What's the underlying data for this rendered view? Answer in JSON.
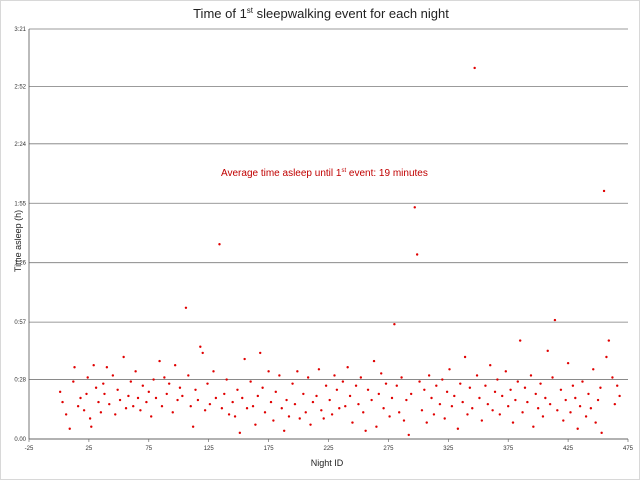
{
  "chart_data": {
    "type": "scatter",
    "title": {
      "pre": "Time of 1",
      "sup": "st",
      "post": " sleepwalking event for each night"
    },
    "xlabel": "Night ID",
    "ylabel": "Time asleep (h)",
    "xlim": [
      -25,
      475
    ],
    "ylim": [
      0,
      200
    ],
    "xticks": [
      -25,
      25,
      75,
      125,
      175,
      225,
      275,
      325,
      375,
      425,
      475
    ],
    "yticks": [
      {
        "v": 0,
        "label": "0.00"
      },
      {
        "v": 29,
        "label": "0:28"
      },
      {
        "v": 57,
        "label": "0:57"
      },
      {
        "v": 86,
        "label": "1:26"
      },
      {
        "v": 115,
        "label": "1:55"
      },
      {
        "v": 144,
        "label": "2:24"
      },
      {
        "v": 172,
        "label": "2:52"
      },
      {
        "v": 200,
        "label": "3:21"
      }
    ],
    "grid": true,
    "point_color": "#e00000",
    "annotation": {
      "pre": "Average time asleep until 1",
      "sup": "st",
      "post": " event: 19 minutes"
    },
    "series": [
      {
        "values": [
          [
            1,
            23
          ],
          [
            3,
            18
          ],
          [
            6,
            12
          ],
          [
            9,
            5
          ],
          [
            12,
            28
          ],
          [
            13,
            35
          ],
          [
            16,
            16
          ],
          [
            18,
            20
          ],
          [
            21,
            14
          ],
          [
            23,
            22
          ],
          [
            24,
            30
          ],
          [
            26,
            10
          ],
          [
            27,
            6
          ],
          [
            29,
            36
          ],
          [
            31,
            25
          ],
          [
            33,
            18
          ],
          [
            35,
            13
          ],
          [
            37,
            27
          ],
          [
            38,
            22
          ],
          [
            40,
            35
          ],
          [
            42,
            17
          ],
          [
            45,
            31
          ],
          [
            47,
            12
          ],
          [
            49,
            24
          ],
          [
            51,
            19
          ],
          [
            54,
            40
          ],
          [
            56,
            15
          ],
          [
            58,
            21
          ],
          [
            60,
            28
          ],
          [
            62,
            16
          ],
          [
            64,
            33
          ],
          [
            66,
            20
          ],
          [
            68,
            14
          ],
          [
            70,
            26
          ],
          [
            73,
            18
          ],
          [
            75,
            23
          ],
          [
            77,
            11
          ],
          [
            79,
            29
          ],
          [
            81,
            20
          ],
          [
            84,
            38
          ],
          [
            86,
            16
          ],
          [
            88,
            30
          ],
          [
            90,
            22
          ],
          [
            92,
            27
          ],
          [
            95,
            13
          ],
          [
            97,
            36
          ],
          [
            99,
            19
          ],
          [
            101,
            25
          ],
          [
            103,
            21
          ],
          [
            106,
            64
          ],
          [
            108,
            31
          ],
          [
            110,
            16
          ],
          [
            112,
            6
          ],
          [
            114,
            24
          ],
          [
            116,
            19
          ],
          [
            118,
            45
          ],
          [
            120,
            42
          ],
          [
            122,
            14
          ],
          [
            124,
            27
          ],
          [
            126,
            17
          ],
          [
            129,
            33
          ],
          [
            131,
            20
          ],
          [
            134,
            95
          ],
          [
            136,
            15
          ],
          [
            138,
            22
          ],
          [
            140,
            29
          ],
          [
            142,
            12
          ],
          [
            145,
            18
          ],
          [
            147,
            11
          ],
          [
            149,
            24
          ],
          [
            151,
            3
          ],
          [
            153,
            20
          ],
          [
            155,
            39
          ],
          [
            157,
            15
          ],
          [
            160,
            28
          ],
          [
            162,
            16
          ],
          [
            164,
            7
          ],
          [
            166,
            21
          ],
          [
            168,
            42
          ],
          [
            170,
            25
          ],
          [
            172,
            13
          ],
          [
            175,
            33
          ],
          [
            177,
            18
          ],
          [
            179,
            9
          ],
          [
            181,
            23
          ],
          [
            184,
            31
          ],
          [
            186,
            15
          ],
          [
            188,
            4
          ],
          [
            190,
            19
          ],
          [
            192,
            11
          ],
          [
            195,
            27
          ],
          [
            197,
            17
          ],
          [
            199,
            33
          ],
          [
            201,
            10
          ],
          [
            204,
            22
          ],
          [
            206,
            13
          ],
          [
            208,
            30
          ],
          [
            210,
            7
          ],
          [
            212,
            18
          ],
          [
            215,
            21
          ],
          [
            217,
            34
          ],
          [
            219,
            14
          ],
          [
            221,
            10
          ],
          [
            223,
            26
          ],
          [
            226,
            19
          ],
          [
            228,
            12
          ],
          [
            230,
            31
          ],
          [
            232,
            24
          ],
          [
            234,
            15
          ],
          [
            237,
            28
          ],
          [
            239,
            16
          ],
          [
            241,
            35
          ],
          [
            243,
            21
          ],
          [
            245,
            8
          ],
          [
            248,
            26
          ],
          [
            250,
            17
          ],
          [
            252,
            30
          ],
          [
            254,
            13
          ],
          [
            256,
            4
          ],
          [
            258,
            24
          ],
          [
            261,
            19
          ],
          [
            263,
            38
          ],
          [
            265,
            6
          ],
          [
            267,
            22
          ],
          [
            269,
            32
          ],
          [
            271,
            15
          ],
          [
            273,
            27
          ],
          [
            276,
            11
          ],
          [
            278,
            20
          ],
          [
            280,
            56
          ],
          [
            282,
            26
          ],
          [
            284,
            13
          ],
          [
            286,
            30
          ],
          [
            288,
            9
          ],
          [
            290,
            19
          ],
          [
            292,
            2
          ],
          [
            294,
            22
          ],
          [
            297,
            113
          ],
          [
            299,
            90
          ],
          [
            301,
            28
          ],
          [
            303,
            14
          ],
          [
            305,
            24
          ],
          [
            307,
            8
          ],
          [
            309,
            31
          ],
          [
            311,
            20
          ],
          [
            313,
            12
          ],
          [
            315,
            26
          ],
          [
            318,
            17
          ],
          [
            320,
            29
          ],
          [
            322,
            10
          ],
          [
            324,
            23
          ],
          [
            326,
            34
          ],
          [
            328,
            16
          ],
          [
            330,
            21
          ],
          [
            333,
            5
          ],
          [
            335,
            27
          ],
          [
            337,
            18
          ],
          [
            339,
            40
          ],
          [
            341,
            12
          ],
          [
            343,
            25
          ],
          [
            345,
            15
          ],
          [
            347,
            181
          ],
          [
            349,
            31
          ],
          [
            351,
            20
          ],
          [
            353,
            9
          ],
          [
            356,
            26
          ],
          [
            358,
            17
          ],
          [
            360,
            36
          ],
          [
            362,
            14
          ],
          [
            364,
            23
          ],
          [
            366,
            29
          ],
          [
            368,
            12
          ],
          [
            370,
            21
          ],
          [
            373,
            33
          ],
          [
            375,
            16
          ],
          [
            377,
            24
          ],
          [
            379,
            8
          ],
          [
            381,
            19
          ],
          [
            383,
            28
          ],
          [
            385,
            48
          ],
          [
            387,
            13
          ],
          [
            389,
            25
          ],
          [
            391,
            18
          ],
          [
            394,
            31
          ],
          [
            396,
            6
          ],
          [
            398,
            22
          ],
          [
            400,
            15
          ],
          [
            402,
            27
          ],
          [
            404,
            11
          ],
          [
            406,
            20
          ],
          [
            408,
            43
          ],
          [
            410,
            17
          ],
          [
            412,
            30
          ],
          [
            414,
            58
          ],
          [
            416,
            14
          ],
          [
            419,
            24
          ],
          [
            421,
            9
          ],
          [
            423,
            19
          ],
          [
            425,
            37
          ],
          [
            427,
            13
          ],
          [
            429,
            26
          ],
          [
            431,
            20
          ],
          [
            433,
            5
          ],
          [
            435,
            16
          ],
          [
            437,
            28
          ],
          [
            440,
            11
          ],
          [
            442,
            22
          ],
          [
            444,
            15
          ],
          [
            446,
            34
          ],
          [
            448,
            8
          ],
          [
            450,
            19
          ],
          [
            452,
            25
          ],
          [
            453,
            3
          ],
          [
            455,
            121
          ],
          [
            457,
            40
          ],
          [
            459,
            48
          ],
          [
            462,
            30
          ],
          [
            464,
            17
          ],
          [
            466,
            26
          ],
          [
            468,
            21
          ]
        ]
      }
    ]
  }
}
